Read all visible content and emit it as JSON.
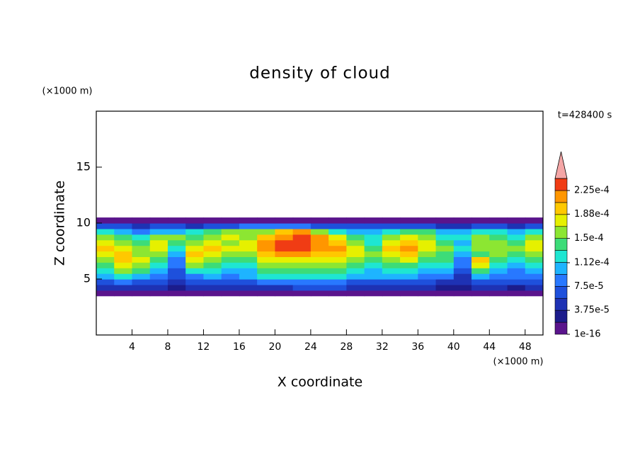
{
  "chart_data": {
    "type": "contour",
    "title": "density of cloud",
    "x_label": "X coordinate",
    "y_label": "Z coordinate",
    "x_unit": "(×1000 m)",
    "y_unit": "(×1000 m)",
    "time_label": "t=428400 s",
    "xlim": [
      0,
      50
    ],
    "ylim": [
      0,
      20
    ],
    "xticks": [
      4,
      8,
      12,
      16,
      20,
      24,
      28,
      32,
      36,
      40,
      44,
      48
    ],
    "yticks": [
      5,
      10,
      15
    ],
    "x": [
      1,
      3,
      5,
      7,
      9,
      11,
      13,
      15,
      17,
      19,
      21,
      23,
      25,
      27,
      29,
      31,
      33,
      35,
      37,
      39,
      41,
      43,
      45,
      47,
      49
    ],
    "y": [
      3.75,
      4.25,
      4.75,
      5.25,
      5.75,
      6.25,
      6.75,
      7.25,
      7.75,
      8.25,
      8.75,
      9.25,
      9.75,
      10.25
    ],
    "z": [
      [
        9e-06,
        9e-06,
        9e-06,
        9e-06,
        9e-06,
        9e-06,
        9e-06,
        9e-06,
        9e-06,
        9e-06,
        9e-06,
        9e-06,
        9e-06,
        9e-06,
        9e-06,
        9e-06,
        9e-06,
        9e-06,
        9e-06,
        9e-06,
        9e-06,
        9e-06,
        9e-06,
        9e-06,
        9e-06
      ],
      [
        4.7e-05,
        4.7e-05,
        4.7e-05,
        4.7e-05,
        2.8e-05,
        4.7e-05,
        4.7e-05,
        4.7e-05,
        4.7e-05,
        4.7e-05,
        4.7e-05,
        6.6e-05,
        6.6e-05,
        6.6e-05,
        4.7e-05,
        4.7e-05,
        4.7e-05,
        4.7e-05,
        4.7e-05,
        2.8e-05,
        2.8e-05,
        4.7e-05,
        4.7e-05,
        2.8e-05,
        4.7e-05
      ],
      [
        6.6e-05,
        8.4e-05,
        6.6e-05,
        6.6e-05,
        4.7e-05,
        6.6e-05,
        6.6e-05,
        6.6e-05,
        6.6e-05,
        8.4e-05,
        8.4e-05,
        8.4e-05,
        8.4e-05,
        8.4e-05,
        6.6e-05,
        6.6e-05,
        6.6e-05,
        6.6e-05,
        6.6e-05,
        4.7e-05,
        4.7e-05,
        6.6e-05,
        6.6e-05,
        6.6e-05,
        6.6e-05
      ],
      [
        0.000103,
        0.000122,
        0.000103,
        8.4e-05,
        6.6e-05,
        8.4e-05,
        0.000103,
        8.4e-05,
        0.000103,
        0.000122,
        0.000122,
        0.000122,
        0.000122,
        0.000122,
        0.000103,
        0.000103,
        0.000103,
        0.000103,
        8.4e-05,
        8.4e-05,
        4.7e-05,
        0.000103,
        8.4e-05,
        8.4e-05,
        8.4e-05
      ],
      [
        0.000122,
        0.000159,
        0.000141,
        0.000103,
        6.6e-05,
        0.000122,
        0.000122,
        0.000103,
        0.000103,
        0.000141,
        0.000141,
        0.000141,
        0.000141,
        0.000141,
        0.000122,
        0.000103,
        0.000122,
        0.000122,
        0.000103,
        0.000103,
        6.6e-05,
        0.000141,
        0.000103,
        8.4e-05,
        0.000103
      ],
      [
        0.000141,
        0.000178,
        0.000159,
        0.000122,
        8.4e-05,
        0.000159,
        0.000141,
        0.000122,
        0.000122,
        0.000159,
        0.000159,
        0.000159,
        0.000159,
        0.000159,
        0.000141,
        0.000122,
        0.000141,
        0.000141,
        0.000122,
        0.000122,
        8.4e-05,
        0.000178,
        0.000122,
        0.000103,
        0.000122
      ],
      [
        0.000159,
        0.000197,
        0.000178,
        0.000141,
        8.4e-05,
        0.000178,
        0.000159,
        0.000141,
        0.000141,
        0.000178,
        0.000178,
        0.000178,
        0.000178,
        0.000178,
        0.000159,
        0.000141,
        0.000159,
        0.000178,
        0.000141,
        0.000141,
        8.4e-05,
        0.000197,
        0.000141,
        0.000122,
        0.000141
      ],
      [
        0.000178,
        0.000197,
        0.000159,
        0.000159,
        0.000103,
        0.000197,
        0.000178,
        0.000159,
        0.000159,
        0.000197,
        0.000216,
        0.000216,
        0.000197,
        0.000197,
        0.000178,
        0.000159,
        0.000178,
        0.000197,
        0.000159,
        0.000141,
        0.000103,
        0.000141,
        0.000159,
        0.000141,
        0.000159
      ],
      [
        0.000197,
        0.000178,
        0.000159,
        0.000178,
        0.000122,
        0.000178,
        0.000197,
        0.000178,
        0.000178,
        0.000216,
        0.000234,
        0.000234,
        0.000216,
        0.000216,
        0.000178,
        0.000141,
        0.000197,
        0.000216,
        0.000178,
        0.000159,
        0.000122,
        0.000159,
        0.000159,
        0.000159,
        0.000178
      ],
      [
        0.000178,
        0.000159,
        0.000141,
        0.000178,
        0.000141,
        0.000159,
        0.000178,
        0.000159,
        0.000178,
        0.000216,
        0.000234,
        0.000234,
        0.000216,
        0.000197,
        0.000159,
        0.000122,
        0.000178,
        0.000197,
        0.000178,
        0.000141,
        0.000103,
        0.000159,
        0.000159,
        0.000141,
        0.000178
      ],
      [
        0.000159,
        0.000141,
        0.000122,
        0.000159,
        0.000159,
        0.000141,
        0.000159,
        0.000178,
        0.000159,
        0.000197,
        0.000216,
        0.000234,
        0.000216,
        0.000178,
        0.000141,
        0.000122,
        0.000159,
        0.000178,
        0.000159,
        0.000122,
        0.000122,
        0.000159,
        0.000141,
        0.000122,
        0.000159
      ],
      [
        0.000122,
        0.000103,
        8.4e-05,
        0.000103,
        0.000103,
        0.000122,
        0.000141,
        0.000159,
        0.000159,
        0.000159,
        0.000197,
        0.000216,
        0.000159,
        0.000122,
        0.000103,
        0.000103,
        0.000122,
        0.000141,
        0.000141,
        0.000103,
        0.000103,
        0.000122,
        0.000122,
        0.000103,
        0.000122
      ],
      [
        6.6e-05,
        6.6e-05,
        4.7e-05,
        6.6e-05,
        6.6e-05,
        4.7e-05,
        6.6e-05,
        6.6e-05,
        8.4e-05,
        8.4e-05,
        8.4e-05,
        8.4e-05,
        6.6e-05,
        6.6e-05,
        6.6e-05,
        6.6e-05,
        6.6e-05,
        6.6e-05,
        6.6e-05,
        4.7e-05,
        4.7e-05,
        6.6e-05,
        6.6e-05,
        4.7e-05,
        6.6e-05
      ],
      [
        9e-06,
        9e-06,
        9e-06,
        9e-06,
        9e-06,
        9e-06,
        9e-06,
        9e-06,
        9e-06,
        9e-06,
        9e-06,
        9e-06,
        9e-06,
        9e-06,
        9e-06,
        9e-06,
        9e-06,
        9e-06,
        9e-06,
        9e-06,
        9e-06,
        9e-06,
        9e-06,
        9e-06,
        9e-06
      ]
    ],
    "colorbar": {
      "levels": [
        1e-16,
        1.875e-05,
        3.75e-05,
        5.625e-05,
        7.5e-05,
        9.375e-05,
        0.0001125,
        0.00013125,
        0.00015,
        0.00016875,
        0.0001875,
        0.00020625,
        0.000225,
        0.00024375
      ],
      "colors": [
        "#5a148c",
        "#1c1c8c",
        "#1e32b4",
        "#1e50dc",
        "#2878ff",
        "#1eb4ff",
        "#1ee6d2",
        "#3cdc78",
        "#8ce632",
        "#e6f000",
        "#ffc800",
        "#ff9600",
        "#f03c14"
      ],
      "extend_color": "#f4a6a6",
      "ticks": [
        {
          "value": 1e-16,
          "label": "1e-16"
        },
        {
          "value": 3.75e-05,
          "label": "3.75e-5"
        },
        {
          "value": 7.5e-05,
          "label": "7.5e-5"
        },
        {
          "value": 0.000112,
          "label": "1.12e-4"
        },
        {
          "value": 0.00015,
          "label": "1.5e-4"
        },
        {
          "value": 0.000188,
          "label": "1.88e-4"
        },
        {
          "value": 0.000225,
          "label": "2.25e-4"
        }
      ]
    }
  }
}
